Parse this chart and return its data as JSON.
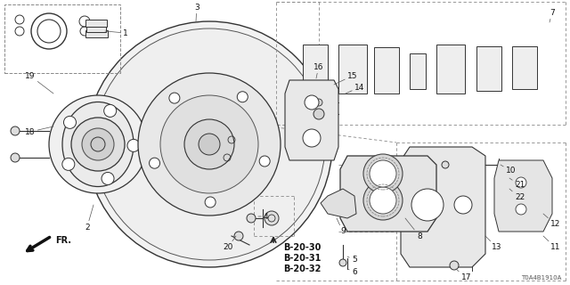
{
  "bg_color": "#ffffff",
  "diagram_code": "T0A4B1910A",
  "bold_refs": [
    "B-20-30",
    "B-20-31",
    "B-20-32"
  ],
  "line_color": "#333333",
  "dashed_color": "#888888"
}
